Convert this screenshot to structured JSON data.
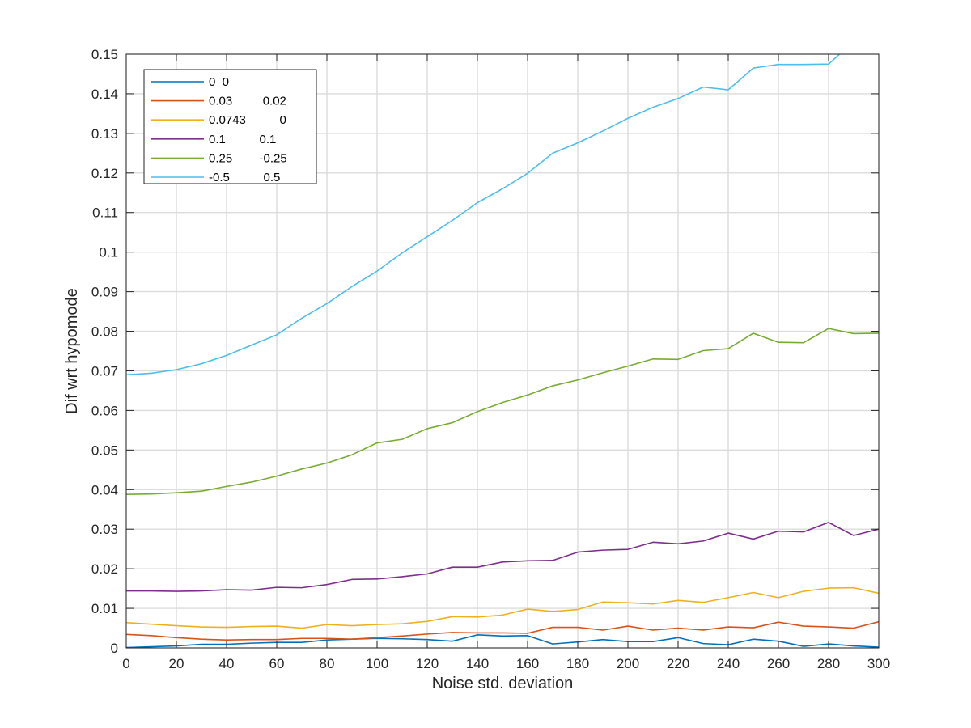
{
  "chart_data": {
    "type": "line",
    "title": "",
    "xlabel": "Noise std. deviation",
    "ylabel": "Dif wrt hypomode",
    "xlim": [
      0,
      300
    ],
    "ylim": [
      0,
      0.15
    ],
    "xticks": [
      0,
      20,
      40,
      60,
      80,
      100,
      120,
      140,
      160,
      180,
      200,
      220,
      240,
      260,
      280,
      300
    ],
    "xtick_labels": [
      "0",
      "20",
      "40",
      "60",
      "80",
      "100",
      "120",
      "140",
      "160",
      "180",
      "200",
      "220",
      "240",
      "260",
      "280",
      "300"
    ],
    "yticks": [
      0,
      0.01,
      0.02,
      0.03,
      0.04,
      0.05,
      0.06,
      0.07,
      0.08,
      0.09,
      0.1,
      0.11,
      0.12,
      0.13,
      0.14,
      0.15
    ],
    "ytick_labels": [
      "0",
      "0.01",
      "0.02",
      "0.03",
      "0.04",
      "0.05",
      "0.06",
      "0.07",
      "0.08",
      "0.09",
      "0.1",
      "0.11",
      "0.12",
      "0.13",
      "0.14",
      "0.15"
    ],
    "grid": true,
    "legend_position": "top-left",
    "x": [
      0,
      10,
      20,
      30,
      40,
      50,
      60,
      70,
      80,
      90,
      100,
      110,
      120,
      130,
      140,
      150,
      160,
      170,
      180,
      190,
      200,
      210,
      220,
      230,
      240,
      250,
      260,
      270,
      280,
      290,
      300
    ],
    "series": [
      {
        "name": "0  0",
        "color": "#0072bd",
        "values": [
          0.0001,
          0.0003,
          0.0005,
          0.0009,
          0.0009,
          0.0012,
          0.0014,
          0.0014,
          0.002,
          0.0022,
          0.0024,
          0.0023,
          0.0021,
          0.0017,
          0.0033,
          0.003,
          0.0031,
          0.001,
          0.0015,
          0.0021,
          0.0016,
          0.0016,
          0.0026,
          0.0011,
          0.0008,
          0.0022,
          0.0017,
          0.0004,
          0.001,
          0.0005,
          0.0002
        ]
      },
      {
        "name": "0.03         0.02",
        "color": "#d95319",
        "values": [
          0.0034,
          0.0031,
          0.0026,
          0.0022,
          0.002,
          0.0021,
          0.0021,
          0.0024,
          0.0024,
          0.0022,
          0.0026,
          0.003,
          0.0035,
          0.0039,
          0.0038,
          0.0038,
          0.0037,
          0.0052,
          0.0052,
          0.0045,
          0.0055,
          0.0045,
          0.005,
          0.0045,
          0.0053,
          0.0051,
          0.0065,
          0.0055,
          0.0053,
          0.005,
          0.0066
        ]
      },
      {
        "name": "0.0743          0",
        "color": "#edb120",
        "values": [
          0.0064,
          0.006,
          0.0056,
          0.0053,
          0.0052,
          0.0054,
          0.0055,
          0.005,
          0.0059,
          0.0056,
          0.0059,
          0.0061,
          0.0067,
          0.0079,
          0.0078,
          0.0083,
          0.0098,
          0.0092,
          0.0097,
          0.0116,
          0.0114,
          0.0111,
          0.012,
          0.0115,
          0.0127,
          0.014,
          0.0127,
          0.0143,
          0.0151,
          0.0152,
          0.0138
        ]
      },
      {
        "name": "0.1          0.1",
        "color": "#7e2f8e",
        "values": [
          0.0144,
          0.0144,
          0.0143,
          0.0144,
          0.0147,
          0.0146,
          0.0153,
          0.0152,
          0.016,
          0.0173,
          0.0174,
          0.018,
          0.0187,
          0.0204,
          0.0204,
          0.0217,
          0.022,
          0.0221,
          0.0242,
          0.0247,
          0.0249,
          0.0267,
          0.0263,
          0.027,
          0.029,
          0.0275,
          0.0295,
          0.0293,
          0.0317,
          0.0284,
          0.03
        ]
      },
      {
        "name": "0.25        -0.25",
        "color": "#77ac30",
        "values": [
          0.0388,
          0.0389,
          0.0392,
          0.0396,
          0.0408,
          0.0419,
          0.0434,
          0.0452,
          0.0467,
          0.0488,
          0.0518,
          0.0527,
          0.0554,
          0.0569,
          0.0597,
          0.062,
          0.0639,
          0.0662,
          0.0677,
          0.0695,
          0.0712,
          0.073,
          0.0729,
          0.0751,
          0.0756,
          0.0795,
          0.0772,
          0.0771,
          0.0807,
          0.0794,
          0.0795
        ]
      },
      {
        "name": "-0.5          0.5",
        "color": "#4dbeee",
        "values": [
          0.069,
          0.0694,
          0.0703,
          0.0718,
          0.0739,
          0.0765,
          0.0791,
          0.0833,
          0.087,
          0.0913,
          0.0952,
          0.0998,
          0.1039,
          0.108,
          0.1125,
          0.116,
          0.1199,
          0.125,
          0.1276,
          0.1306,
          0.1338,
          0.1366,
          0.1388,
          0.1417,
          0.141,
          0.1465,
          0.1474,
          0.1474,
          0.1475,
          0.1532,
          0.158
        ]
      }
    ]
  }
}
